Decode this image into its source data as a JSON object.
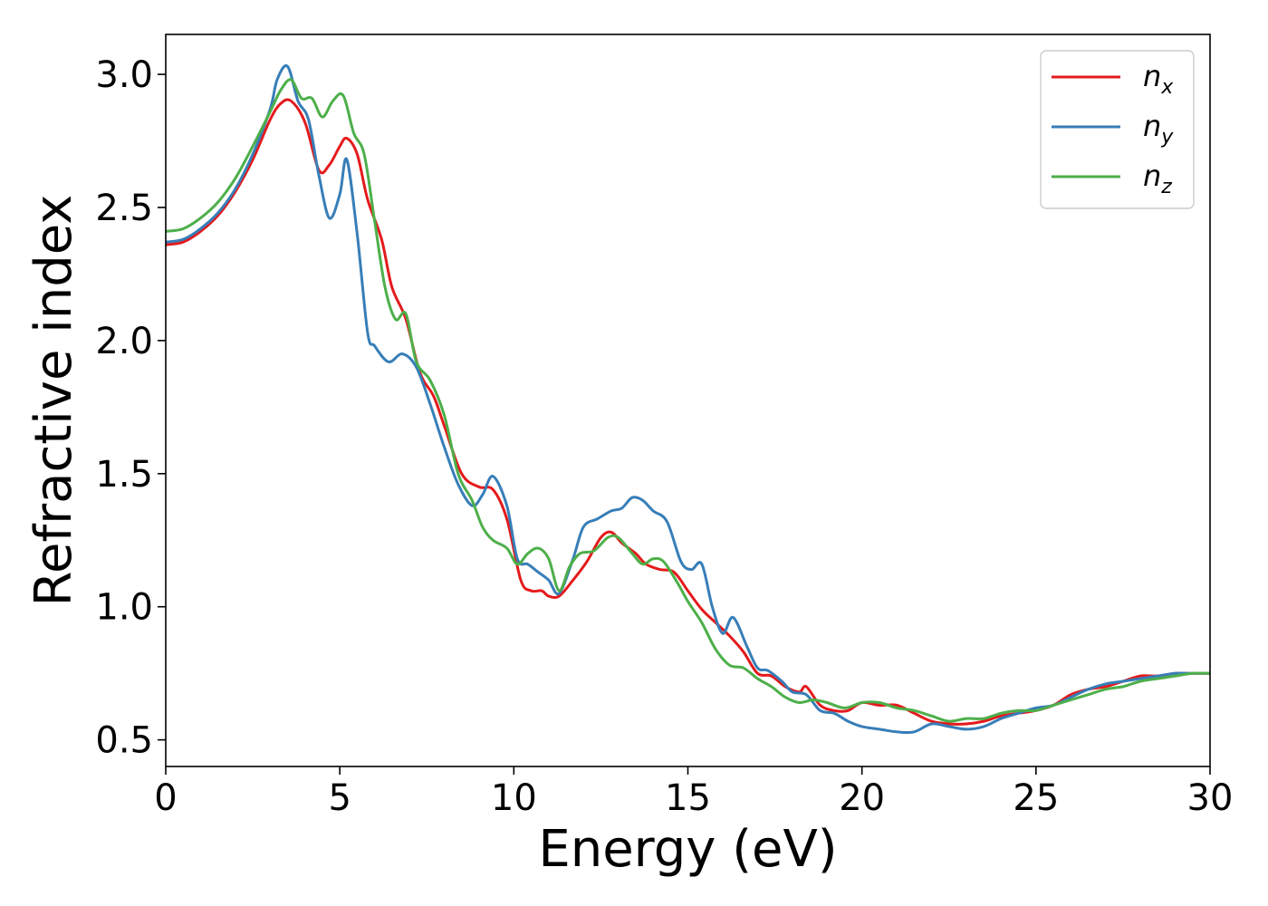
{
  "chart_data": {
    "type": "line",
    "title": "",
    "xlabel": "Energy (eV)",
    "ylabel": "Refractive index",
    "xlim": [
      0,
      30
    ],
    "ylim": [
      0.4,
      3.15
    ],
    "xticks": [
      0,
      5,
      10,
      15,
      20,
      25,
      30
    ],
    "xtick_labels": [
      "0",
      "5",
      "10",
      "15",
      "20",
      "25",
      "30"
    ],
    "yticks": [
      0.5,
      1.0,
      1.5,
      2.0,
      2.5,
      3.0
    ],
    "ytick_labels": [
      "0.5",
      "1.0",
      "1.5",
      "2.0",
      "2.5",
      "3.0"
    ],
    "grid": false,
    "legend_position": "top-right",
    "series": [
      {
        "name": "n_x",
        "label_base": "n",
        "label_sub": "x",
        "color": "#e41a1c",
        "x": [
          0,
          0.5,
          1,
          1.5,
          2,
          2.5,
          3,
          3.3,
          3.6,
          4,
          4.4,
          4.7,
          5,
          5.2,
          5.5,
          5.8,
          6.2,
          6.5,
          6.9,
          7.3,
          7.7,
          8,
          8.5,
          9,
          9.4,
          9.8,
          10.2,
          10.5,
          10.8,
          11,
          11.3,
          11.7,
          12.1,
          12.5,
          12.8,
          13.1,
          13.5,
          13.8,
          14.2,
          14.6,
          15,
          15.4,
          15.8,
          16.2,
          16.6,
          17,
          17.4,
          17.8,
          18.2,
          18.4,
          18.8,
          19.2,
          19.6,
          20,
          20.5,
          21,
          21.5,
          22,
          22.5,
          23,
          23.5,
          24,
          24.5,
          25,
          25.5,
          26,
          26.5,
          27,
          27.5,
          28,
          28.5,
          29,
          29.5,
          30
        ],
        "y": [
          2.36,
          2.37,
          2.41,
          2.47,
          2.56,
          2.68,
          2.83,
          2.89,
          2.9,
          2.82,
          2.64,
          2.66,
          2.73,
          2.76,
          2.7,
          2.53,
          2.38,
          2.2,
          2.08,
          1.88,
          1.79,
          1.68,
          1.5,
          1.45,
          1.44,
          1.33,
          1.1,
          1.06,
          1.06,
          1.04,
          1.04,
          1.1,
          1.17,
          1.26,
          1.28,
          1.24,
          1.2,
          1.16,
          1.14,
          1.13,
          1.06,
          0.99,
          0.94,
          0.89,
          0.83,
          0.75,
          0.74,
          0.7,
          0.68,
          0.7,
          0.63,
          0.61,
          0.61,
          0.64,
          0.63,
          0.63,
          0.6,
          0.57,
          0.56,
          0.56,
          0.57,
          0.59,
          0.6,
          0.61,
          0.63,
          0.67,
          0.69,
          0.7,
          0.72,
          0.74,
          0.74,
          0.75,
          0.75,
          0.75
        ]
      },
      {
        "name": "n_y",
        "label_base": "n",
        "label_sub": "y",
        "color": "#377eb8",
        "x": [
          0,
          0.5,
          1,
          1.5,
          2,
          2.5,
          3,
          3.2,
          3.5,
          3.8,
          4.1,
          4.4,
          4.7,
          5,
          5.2,
          5.5,
          5.8,
          6,
          6.4,
          6.8,
          7.2,
          7.6,
          8,
          8.4,
          8.8,
          9.1,
          9.4,
          9.8,
          10.1,
          10.4,
          10.7,
          11,
          11.3,
          11.7,
          12,
          12.4,
          12.8,
          13.1,
          13.4,
          13.7,
          14,
          14.4,
          14.8,
          15.1,
          15.4,
          15.7,
          16,
          16.3,
          16.7,
          17,
          17.3,
          17.7,
          18,
          18.4,
          18.8,
          19.2,
          19.6,
          20,
          20.5,
          21,
          21.5,
          22,
          22.5,
          23,
          23.5,
          24,
          24.5,
          25,
          25.5,
          26,
          26.5,
          27,
          27.5,
          28,
          28.5,
          29,
          29.5,
          30
        ],
        "y": [
          2.37,
          2.38,
          2.42,
          2.48,
          2.57,
          2.7,
          2.87,
          2.98,
          3.03,
          2.9,
          2.83,
          2.62,
          2.46,
          2.55,
          2.68,
          2.4,
          2.03,
          1.98,
          1.92,
          1.95,
          1.9,
          1.76,
          1.6,
          1.46,
          1.38,
          1.42,
          1.49,
          1.38,
          1.18,
          1.16,
          1.13,
          1.1,
          1.05,
          1.18,
          1.3,
          1.33,
          1.36,
          1.37,
          1.41,
          1.4,
          1.36,
          1.32,
          1.17,
          1.14,
          1.16,
          1.0,
          0.9,
          0.96,
          0.85,
          0.77,
          0.76,
          0.72,
          0.68,
          0.67,
          0.61,
          0.6,
          0.57,
          0.55,
          0.54,
          0.53,
          0.53,
          0.56,
          0.55,
          0.54,
          0.55,
          0.58,
          0.6,
          0.62,
          0.63,
          0.66,
          0.69,
          0.71,
          0.72,
          0.73,
          0.74,
          0.75,
          0.75,
          0.75
        ]
      },
      {
        "name": "n_z",
        "label_base": "n",
        "label_sub": "z",
        "color": "#4daf4a",
        "x": [
          0,
          0.5,
          1,
          1.5,
          2,
          2.5,
          3,
          3.3,
          3.6,
          3.9,
          4.2,
          4.5,
          4.8,
          5.1,
          5.4,
          5.7,
          6,
          6.3,
          6.6,
          6.9,
          7.2,
          7.6,
          8,
          8.4,
          8.8,
          9.1,
          9.4,
          9.8,
          10.1,
          10.4,
          10.7,
          11,
          11.3,
          11.6,
          11.9,
          12.3,
          12.7,
          13,
          13.4,
          13.7,
          14,
          14.3,
          14.7,
          15,
          15.4,
          15.8,
          16.2,
          16.6,
          17,
          17.4,
          17.8,
          18.2,
          18.6,
          19,
          19.5,
          20,
          20.5,
          21,
          21.5,
          22,
          22.5,
          23,
          23.5,
          24,
          24.5,
          25,
          25.5,
          26,
          26.5,
          27,
          27.5,
          28,
          28.5,
          29,
          29.5,
          30
        ],
        "y": [
          2.41,
          2.42,
          2.46,
          2.52,
          2.61,
          2.73,
          2.86,
          2.94,
          2.98,
          2.91,
          2.91,
          2.84,
          2.9,
          2.92,
          2.78,
          2.7,
          2.45,
          2.2,
          2.08,
          2.1,
          1.92,
          1.85,
          1.72,
          1.5,
          1.4,
          1.3,
          1.25,
          1.22,
          1.16,
          1.2,
          1.22,
          1.18,
          1.06,
          1.15,
          1.2,
          1.21,
          1.26,
          1.26,
          1.2,
          1.16,
          1.18,
          1.17,
          1.09,
          1.02,
          0.94,
          0.84,
          0.78,
          0.77,
          0.73,
          0.7,
          0.66,
          0.64,
          0.65,
          0.64,
          0.62,
          0.64,
          0.64,
          0.62,
          0.61,
          0.59,
          0.57,
          0.58,
          0.58,
          0.6,
          0.61,
          0.61,
          0.63,
          0.65,
          0.67,
          0.69,
          0.7,
          0.72,
          0.73,
          0.74,
          0.75,
          0.75
        ]
      }
    ]
  }
}
